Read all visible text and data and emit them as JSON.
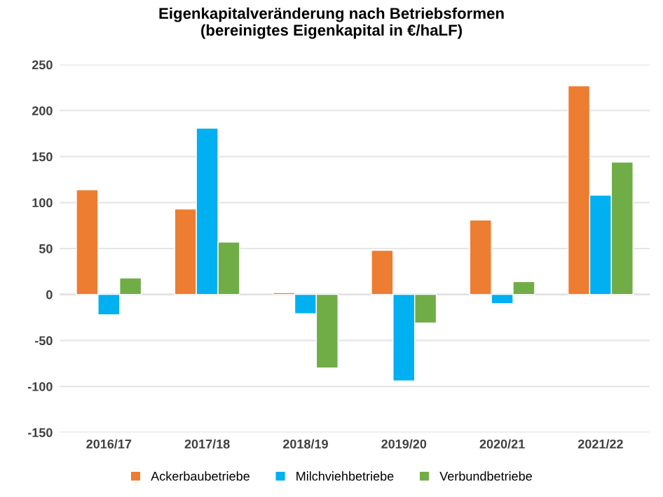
{
  "chart_data": {
    "type": "bar",
    "title": "Eigenkapitalveränderung nach Betriebsformen\n(bereinigtes Eigenkapital in €/haLF)",
    "categories": [
      "2016/17",
      "2017/18",
      "2018/19",
      "2019/20",
      "2020/21",
      "2021/22"
    ],
    "series": [
      {
        "name": "Ackerbaubetriebe",
        "color": "#ed7d31",
        "values": [
          114,
          93,
          2,
          48,
          81,
          227
        ]
      },
      {
        "name": "Milchviehbetriebe",
        "color": "#00b0f0",
        "values": [
          -22,
          181,
          -21,
          -94,
          -10,
          108
        ]
      },
      {
        "name": "Verbundbetriebe",
        "color": "#70ad47",
        "values": [
          18,
          57,
          -80,
          -31,
          14,
          144
        ]
      }
    ],
    "ylim": [
      -150,
      250
    ],
    "yticks": [
      -150,
      -100,
      -50,
      0,
      50,
      100,
      150,
      200,
      250
    ],
    "grid": "y",
    "legend": "bottom"
  }
}
